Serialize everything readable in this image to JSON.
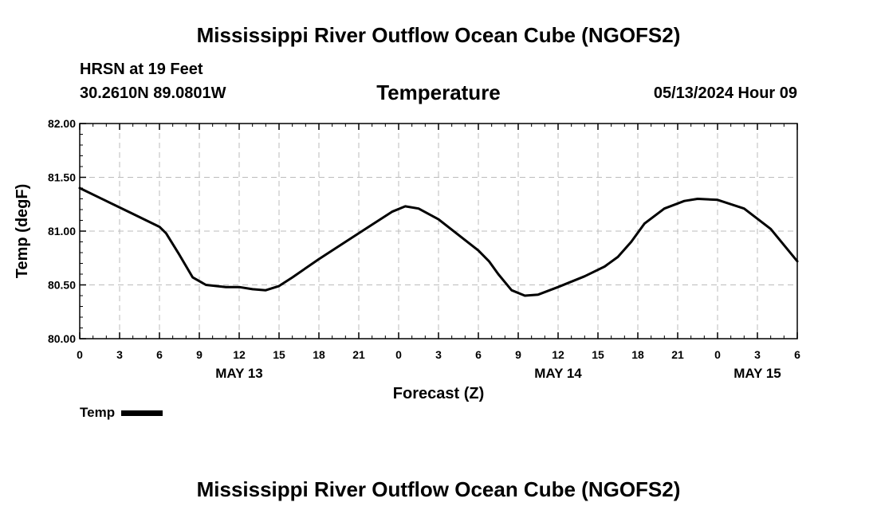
{
  "header": {
    "title": "Mississippi River Outflow Ocean Cube (NGOFS2)",
    "station": "HRSN at 19 Feet",
    "coords": "30.2610N  89.0801W",
    "variable": "Temperature",
    "datetime": "05/13/2024 Hour 09"
  },
  "footer": {
    "title": "Mississippi River Outflow Ocean Cube (NGOFS2)"
  },
  "legend": {
    "label": "Temp",
    "color": "#000000"
  },
  "chart_data": {
    "type": "line",
    "title": "Temperature",
    "xlabel": "Forecast (Z)",
    "ylabel": "Temp (degF)",
    "xlim": [
      0,
      54
    ],
    "ylim": [
      80.0,
      82.0
    ],
    "y_ticks": [
      "80.00",
      "80.50",
      "81.00",
      "81.50",
      "82.00"
    ],
    "x_ticks": [
      {
        "x": 0,
        "label": "0"
      },
      {
        "x": 3,
        "label": "3"
      },
      {
        "x": 6,
        "label": "6"
      },
      {
        "x": 9,
        "label": "9"
      },
      {
        "x": 12,
        "label": "12"
      },
      {
        "x": 15,
        "label": "15"
      },
      {
        "x": 18,
        "label": "18"
      },
      {
        "x": 21,
        "label": "21"
      },
      {
        "x": 24,
        "label": "0"
      },
      {
        "x": 27,
        "label": "3"
      },
      {
        "x": 30,
        "label": "6"
      },
      {
        "x": 33,
        "label": "9"
      },
      {
        "x": 36,
        "label": "12"
      },
      {
        "x": 39,
        "label": "15"
      },
      {
        "x": 42,
        "label": "18"
      },
      {
        "x": 45,
        "label": "21"
      },
      {
        "x": 48,
        "label": "0"
      },
      {
        "x": 51,
        "label": "3"
      },
      {
        "x": 54,
        "label": "6"
      }
    ],
    "date_labels": [
      {
        "x": 12,
        "label": "MAY 13"
      },
      {
        "x": 36,
        "label": "MAY 14"
      },
      {
        "x": 51,
        "label": "MAY 15"
      }
    ],
    "grid": true,
    "series": [
      {
        "name": "Temp",
        "x": [
          0,
          2,
          4,
          6,
          6.5,
          7.5,
          8.5,
          9.5,
          11,
          12,
          13,
          14,
          15,
          16,
          18,
          20,
          22,
          23.5,
          24.5,
          25.5,
          27,
          30,
          30.8,
          31.5,
          32.5,
          33.5,
          34.5,
          36,
          38,
          39.5,
          40.5,
          41.5,
          42.5,
          44,
          45.5,
          46.5,
          48,
          50,
          52,
          54
        ],
        "values": [
          81.4,
          81.28,
          81.16,
          81.04,
          80.98,
          80.78,
          80.57,
          80.5,
          80.48,
          80.48,
          80.46,
          80.45,
          80.49,
          80.57,
          80.74,
          80.9,
          81.06,
          81.18,
          81.23,
          81.21,
          81.11,
          80.82,
          80.72,
          80.6,
          80.45,
          80.4,
          80.41,
          80.48,
          80.58,
          80.67,
          80.76,
          80.9,
          81.07,
          81.21,
          81.28,
          81.3,
          81.29,
          81.21,
          81.02,
          80.72
        ]
      }
    ]
  }
}
